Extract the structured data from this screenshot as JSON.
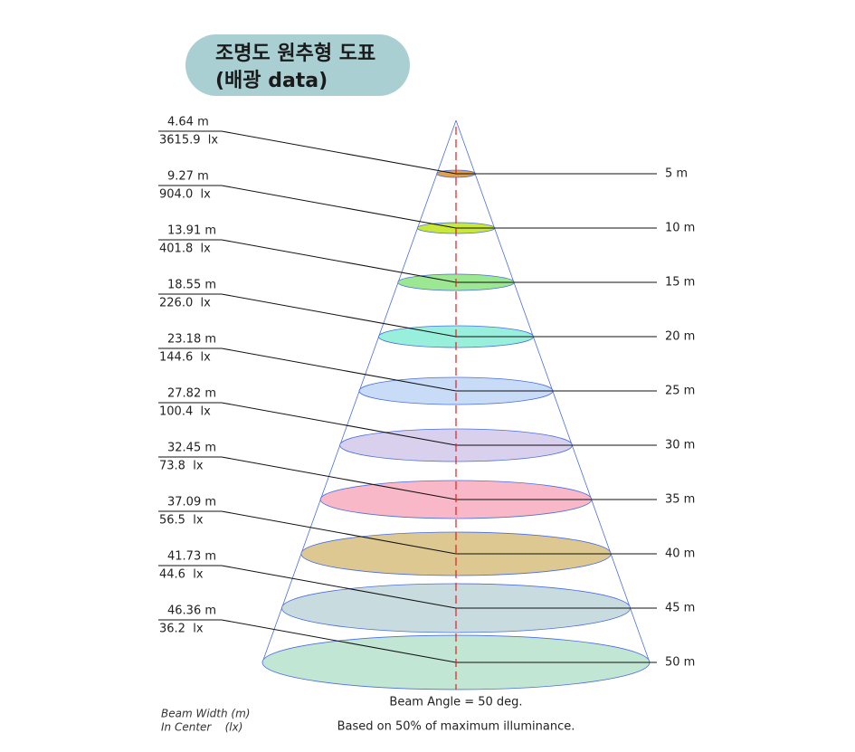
{
  "title": {
    "line1": "조명도 원추형 도표",
    "line2": "(배광 data)"
  },
  "levels": [
    {
      "distance": "5 m",
      "width": "4.64 m",
      "illuminance": "3615.9  lx"
    },
    {
      "distance": "10 m",
      "width": "9.27 m",
      "illuminance": "904.0  lx"
    },
    {
      "distance": "15 m",
      "width": "13.91 m",
      "illuminance": "401.8  lx"
    },
    {
      "distance": "20 m",
      "width": "18.55 m",
      "illuminance": "226.0  lx"
    },
    {
      "distance": "25 m",
      "width": "23.18 m",
      "illuminance": "144.6  lx"
    },
    {
      "distance": "30 m",
      "width": "27.82 m",
      "illuminance": "100.4  lx"
    },
    {
      "distance": "35 m",
      "width": "32.45 m",
      "illuminance": "73.8  lx"
    },
    {
      "distance": "40 m",
      "width": "37.09 m",
      "illuminance": "56.5  lx"
    },
    {
      "distance": "45 m",
      "width": "41.73 m",
      "illuminance": "44.6  lx"
    },
    {
      "distance": "50 m",
      "width": "46.36 m",
      "illuminance": "36.2  lx"
    }
  ],
  "beam_angle": "Beam Angle = 50 deg.",
  "basis": "Based on 50% of maximum illuminance.",
  "legend": {
    "width": "Beam Width (m)",
    "center": "In Center    (lx)"
  }
}
